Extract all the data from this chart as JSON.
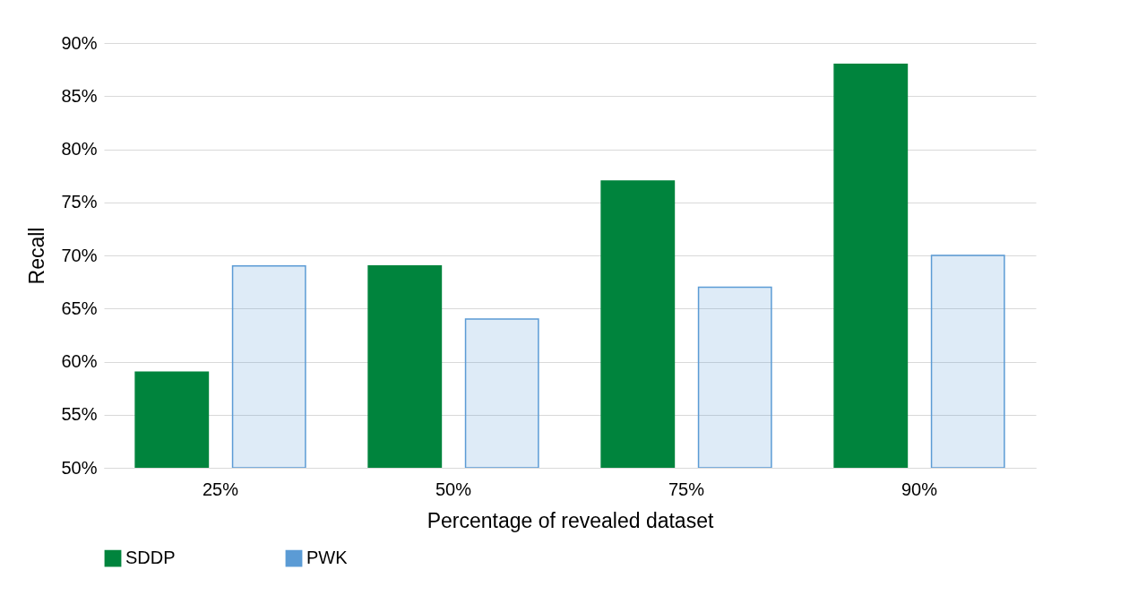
{
  "chart_data": {
    "type": "bar",
    "xlabel": "Percentage of revealed dataset",
    "ylabel": "Recall",
    "categories": [
      "25%",
      "50%",
      "75%",
      "90%"
    ],
    "series": [
      {
        "name": "SDDP",
        "color": "#00843d",
        "values": [
          59,
          69,
          77,
          88
        ]
      },
      {
        "name": "PWK",
        "color": "#5b9bd5",
        "values": [
          69,
          64,
          67,
          70
        ]
      }
    ],
    "ylim": [
      50,
      90
    ],
    "yticks": [
      {
        "value": 50,
        "label": "50%"
      },
      {
        "value": 55,
        "label": "55%"
      },
      {
        "value": 60,
        "label": "60%"
      },
      {
        "value": 65,
        "label": "65%"
      },
      {
        "value": 70,
        "label": "70%"
      },
      {
        "value": 75,
        "label": "75%"
      },
      {
        "value": 80,
        "label": "80%"
      },
      {
        "value": 85,
        "label": "85%"
      },
      {
        "value": 90,
        "label": "90%"
      }
    ],
    "grid": "y",
    "legend": "bottom"
  }
}
